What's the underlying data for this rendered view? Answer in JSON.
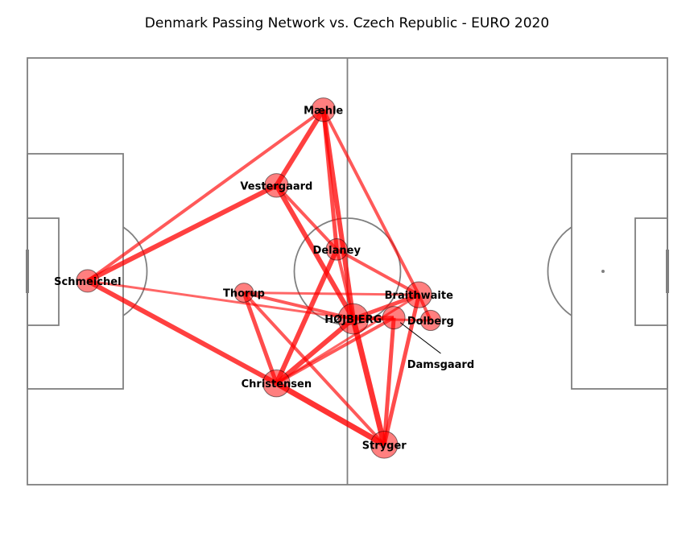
{
  "chart_data": {
    "type": "network",
    "title": "Denmark Passing Network vs. Czech Republic - EURO 2020",
    "xlim": [
      0,
      120
    ],
    "ylim": [
      0,
      80
    ],
    "pitch": "statsbomb",
    "node_color": "#ff0000",
    "edge_color": "#ff0000",
    "nodes": [
      {
        "name": "Schmeichel",
        "x": 11.3,
        "y": 38.2,
        "size": 1.0
      },
      {
        "name": "Mæhle",
        "x": 55.5,
        "y": 70.3,
        "size": 1.05
      },
      {
        "name": "Vestergaard",
        "x": 46.7,
        "y": 56.1,
        "size": 1.05
      },
      {
        "name": "Delaney",
        "x": 58.0,
        "y": 44.1,
        "size": 0.95
      },
      {
        "name": "Thorup",
        "x": 40.6,
        "y": 36.0,
        "size": 0.85
      },
      {
        "name": "HØJBJERG",
        "x": 61.1,
        "y": 31.1,
        "size": 1.35
      },
      {
        "name": "Braithwaite",
        "x": 73.4,
        "y": 35.6,
        "size": 1.15
      },
      {
        "name": "Damsgaard",
        "x": 68.7,
        "y": 31.3,
        "size": 1.0
      },
      {
        "name": "Dolberg",
        "x": 75.6,
        "y": 30.8,
        "size": 0.9
      },
      {
        "name": "Christensen",
        "x": 46.7,
        "y": 19.0,
        "size": 1.2
      },
      {
        "name": "Stryger",
        "x": 66.9,
        "y": 7.5,
        "size": 1.2
      }
    ],
    "edges": [
      {
        "source": "Schmeichel",
        "target": "Mæhle",
        "weight": 4
      },
      {
        "source": "Schmeichel",
        "target": "Vestergaard",
        "weight": 6
      },
      {
        "source": "Schmeichel",
        "target": "Christensen",
        "weight": 6
      },
      {
        "source": "Schmeichel",
        "target": "HØJBJERG",
        "weight": 3
      },
      {
        "source": "Mæhle",
        "target": "Vestergaard",
        "weight": 6
      },
      {
        "source": "Mæhle",
        "target": "HØJBJERG",
        "weight": 6
      },
      {
        "source": "Mæhle",
        "target": "Braithwaite",
        "weight": 4
      },
      {
        "source": "Mæhle",
        "target": "Delaney",
        "weight": 5
      },
      {
        "source": "Vestergaard",
        "target": "HØJBJERG",
        "weight": 6
      },
      {
        "source": "Vestergaard",
        "target": "Delaney",
        "weight": 4
      },
      {
        "source": "Delaney",
        "target": "Braithwaite",
        "weight": 4
      },
      {
        "source": "Delaney",
        "target": "Christensen",
        "weight": 6
      },
      {
        "source": "Delaney",
        "target": "HØJBJERG",
        "weight": 4
      },
      {
        "source": "Thorup",
        "target": "HØJBJERG",
        "weight": 4
      },
      {
        "source": "Thorup",
        "target": "Braithwaite",
        "weight": 3
      },
      {
        "source": "Thorup",
        "target": "Christensen",
        "weight": 5
      },
      {
        "source": "Thorup",
        "target": "Stryger",
        "weight": 4
      },
      {
        "source": "HØJBJERG",
        "target": "Braithwaite",
        "weight": 5
      },
      {
        "source": "HØJBJERG",
        "target": "Damsgaard",
        "weight": 5
      },
      {
        "source": "HØJBJERG",
        "target": "Christensen",
        "weight": 6
      },
      {
        "source": "HØJBJERG",
        "target": "Stryger",
        "weight": 7
      },
      {
        "source": "HØJBJERG",
        "target": "Dolberg",
        "weight": 3
      },
      {
        "source": "Braithwaite",
        "target": "Stryger",
        "weight": 5
      },
      {
        "source": "Braithwaite",
        "target": "Christensen",
        "weight": 3
      },
      {
        "source": "Braithwaite",
        "target": "Dolberg",
        "weight": 4
      },
      {
        "source": "Damsgaard",
        "target": "Stryger",
        "weight": 5
      },
      {
        "source": "Christensen",
        "target": "Stryger",
        "weight": 7
      },
      {
        "source": "Christensen",
        "target": "Damsgaard",
        "weight": 4
      }
    ],
    "annotations": [
      {
        "text": "Damsgaard",
        "target": "Damsgaard",
        "text_x": 77.5,
        "text_y": 22.5,
        "arrow": true
      }
    ]
  }
}
